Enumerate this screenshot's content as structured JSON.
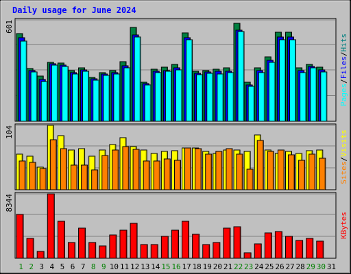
{
  "chart_data": {
    "type": "bar",
    "title": "Daily usage for June 2024",
    "categories": [
      "1",
      "2",
      "3",
      "4",
      "5",
      "6",
      "7",
      "8",
      "9",
      "10",
      "11",
      "12",
      "13",
      "14",
      "15",
      "16",
      "17",
      "18",
      "19",
      "20",
      "21",
      "22",
      "23",
      "24",
      "25",
      "26",
      "27",
      "28",
      "29",
      "30",
      "31"
    ],
    "weekend_days": [
      "1",
      "2",
      "8",
      "9",
      "15",
      "16",
      "22",
      "23",
      "29",
      "30"
    ],
    "panels": [
      {
        "id": "hits-files-pages",
        "ymax": 601,
        "ymax_label": "601",
        "axis_label_parts": [
          "Pages",
          "Files",
          "Hits"
        ],
        "series": [
          {
            "name": "Hits",
            "color": "#008040",
            "values": [
              518,
              312,
              268,
              350,
              345,
              302,
              318,
              260,
              290,
              300,
              355,
              555,
              232,
              308,
              320,
              338,
              522,
              295,
              302,
              308,
              318,
              580,
              232,
              315,
              382,
              528,
              528,
              315,
              338,
              320,
              0
            ]
          },
          {
            "name": "Files",
            "color": "#0000ff",
            "values": [
              496,
              302,
              248,
              340,
              335,
              290,
              305,
              250,
              280,
              290,
              328,
              510,
              222,
              298,
              302,
              315,
              495,
              283,
              292,
              298,
              298,
              540,
              215,
              302,
              360,
              500,
              500,
              302,
              325,
              305,
              0
            ]
          },
          {
            "name": "Pages",
            "color": "#00ffff",
            "values": [
              476,
              292,
              236,
              332,
              326,
              280,
              298,
              242,
              272,
              282,
              318,
              498,
              216,
              290,
              296,
              305,
              485,
              275,
              285,
              282,
              290,
              530,
              208,
              290,
              348,
              485,
              482,
              290,
              318,
              292,
              0
            ]
          }
        ]
      },
      {
        "id": "visits-sites",
        "ymax": 104,
        "ymax_label": "104",
        "axis_label_parts": [
          "Sites",
          "Visits"
        ],
        "series": [
          {
            "name": "Visits",
            "color": "#ffff00",
            "values": [
              58,
              54,
              36,
              104,
              87,
              64,
              66,
              54,
              64,
              73,
              84,
              70,
              64,
              59,
              62,
              63,
              68,
              68,
              62,
              59,
              64,
              64,
              62,
              89,
              64,
              59,
              62,
              59,
              63,
              64,
              0
            ]
          },
          {
            "name": "Sites",
            "color": "#ff8000",
            "values": [
              46,
              44,
              34,
              81,
              66,
              40,
              40,
              32,
              55,
              64,
              70,
              65,
              47,
              47,
              50,
              48,
              68,
              66,
              57,
              62,
              66,
              58,
              33,
              80,
              62,
              64,
              56,
              48,
              58,
              51,
              0
            ]
          }
        ]
      },
      {
        "id": "kbytes",
        "ymax": 8344,
        "ymax_label": "8344",
        "axis_label_parts": [
          "KBytes"
        ],
        "series": [
          {
            "name": "KBytes",
            "color": "#ff0000",
            "values": [
              5700,
              2600,
              900,
              8344,
              4800,
              2000,
              3950,
              2000,
              1600,
              3000,
              3600,
              4500,
              1800,
              1800,
              2800,
              3600,
              4800,
              3100,
              1800,
              2000,
              3950,
              4050,
              700,
              1900,
              3300,
              3450,
              2850,
              2300,
              2600,
              2200,
              0
            ]
          }
        ]
      }
    ],
    "label_colors": {
      "Hits": "#008080",
      "Files": "#0000ff",
      "Pages": "#00ffff",
      "Visits": "#ffff00",
      "Sites": "#ff8000",
      "KBytes": "#ff0000",
      "separator": "#000000",
      "title": "#0000ff",
      "weekday": "#000000",
      "weekend": "#008000"
    }
  }
}
